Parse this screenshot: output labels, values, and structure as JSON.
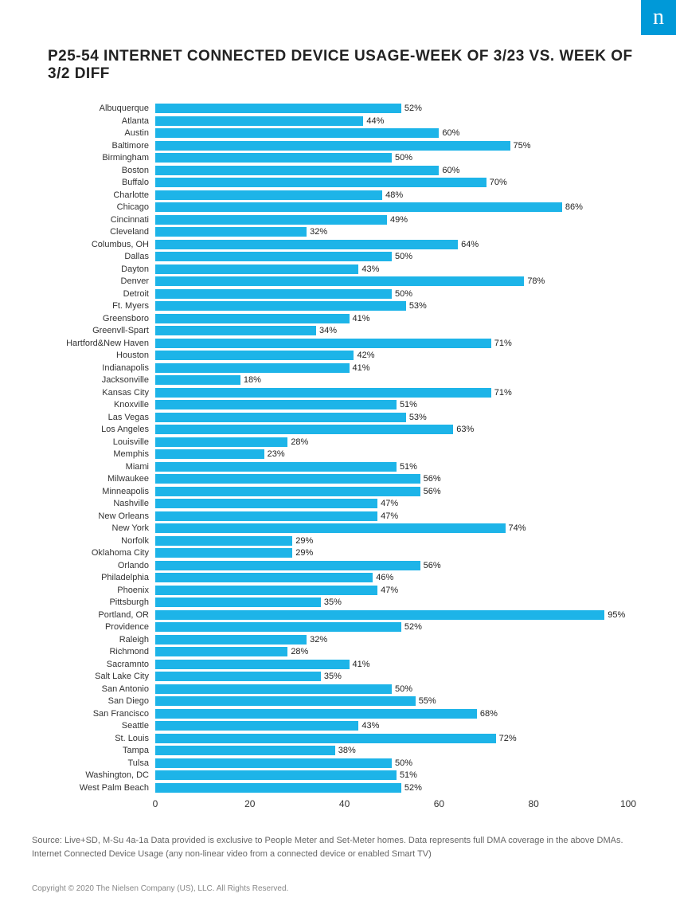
{
  "logo": {
    "text": "n",
    "bg_color": "#0099d8",
    "text_color": "#ffffff"
  },
  "title": "P25-54 INTERNET CONNECTED DEVICE USAGE-WEEK OF 3/23 VS. WEEK OF 3/2 DIFF",
  "chart": {
    "type": "bar",
    "bar_color": "#1db4e8",
    "background_color": "#ffffff",
    "label_fontsize": 11,
    "value_fontsize": 11,
    "xlim": [
      0,
      100
    ],
    "xtick_step": 20,
    "xticks": [
      "0",
      "20",
      "40",
      "60",
      "80",
      "100"
    ],
    "data": [
      {
        "city": "Albuquerque",
        "value": 52
      },
      {
        "city": "Atlanta",
        "value": 44
      },
      {
        "city": "Austin",
        "value": 60
      },
      {
        "city": "Baltimore",
        "value": 75
      },
      {
        "city": "Birmingham",
        "value": 50
      },
      {
        "city": "Boston",
        "value": 60
      },
      {
        "city": "Buffalo",
        "value": 70
      },
      {
        "city": "Charlotte",
        "value": 48
      },
      {
        "city": "Chicago",
        "value": 86
      },
      {
        "city": "Cincinnati",
        "value": 49
      },
      {
        "city": "Cleveland",
        "value": 32
      },
      {
        "city": "Columbus, OH",
        "value": 64
      },
      {
        "city": "Dallas",
        "value": 50
      },
      {
        "city": "Dayton",
        "value": 43
      },
      {
        "city": "Denver",
        "value": 78
      },
      {
        "city": "Detroit",
        "value": 50
      },
      {
        "city": "Ft. Myers",
        "value": 53
      },
      {
        "city": "Greensboro",
        "value": 41
      },
      {
        "city": "Greenvll-Spart",
        "value": 34
      },
      {
        "city": "Hartford&New Haven",
        "value": 71
      },
      {
        "city": "Houston",
        "value": 42
      },
      {
        "city": "Indianapolis",
        "value": 41
      },
      {
        "city": "Jacksonville",
        "value": 18
      },
      {
        "city": "Kansas City",
        "value": 71
      },
      {
        "city": "Knoxville",
        "value": 51
      },
      {
        "city": "Las Vegas",
        "value": 53
      },
      {
        "city": "Los Angeles",
        "value": 63
      },
      {
        "city": "Louisville",
        "value": 28
      },
      {
        "city": "Memphis",
        "value": 23
      },
      {
        "city": "Miami",
        "value": 51
      },
      {
        "city": "Milwaukee",
        "value": 56
      },
      {
        "city": "Minneapolis",
        "value": 56
      },
      {
        "city": "Nashville",
        "value": 47
      },
      {
        "city": "New Orleans",
        "value": 47
      },
      {
        "city": "New York",
        "value": 74
      },
      {
        "city": "Norfolk",
        "value": 29
      },
      {
        "city": "Oklahoma City",
        "value": 29
      },
      {
        "city": "Orlando",
        "value": 56
      },
      {
        "city": "Philadelphia",
        "value": 46
      },
      {
        "city": "Phoenix",
        "value": 47
      },
      {
        "city": "Pittsburgh",
        "value": 35
      },
      {
        "city": "Portland, OR",
        "value": 95
      },
      {
        "city": "Providence",
        "value": 52
      },
      {
        "city": "Raleigh",
        "value": 32
      },
      {
        "city": "Richmond",
        "value": 28
      },
      {
        "city": "Sacramnto",
        "value": 41
      },
      {
        "city": "Salt Lake City",
        "value": 35
      },
      {
        "city": "San Antonio",
        "value": 50
      },
      {
        "city": "San Diego",
        "value": 55
      },
      {
        "city": "San Francisco",
        "value": 68
      },
      {
        "city": "Seattle",
        "value": 43
      },
      {
        "city": "St. Louis",
        "value": 72
      },
      {
        "city": "Tampa",
        "value": 38
      },
      {
        "city": "Tulsa",
        "value": 50
      },
      {
        "city": "Washington, DC",
        "value": 51
      },
      {
        "city": "West Palm Beach",
        "value": 52
      }
    ]
  },
  "source": "Source: Live+SD, M-Su 4a-1a Data provided is exclusive to People Meter and Set-Meter homes. Data represents full DMA coverage in the above DMAs. Internet Connected Device Usage (any non-linear video from a connected device or enabled Smart TV)",
  "copyright": "Copyright © 2020 The Nielsen Company (US), LLC. All Rights Reserved."
}
